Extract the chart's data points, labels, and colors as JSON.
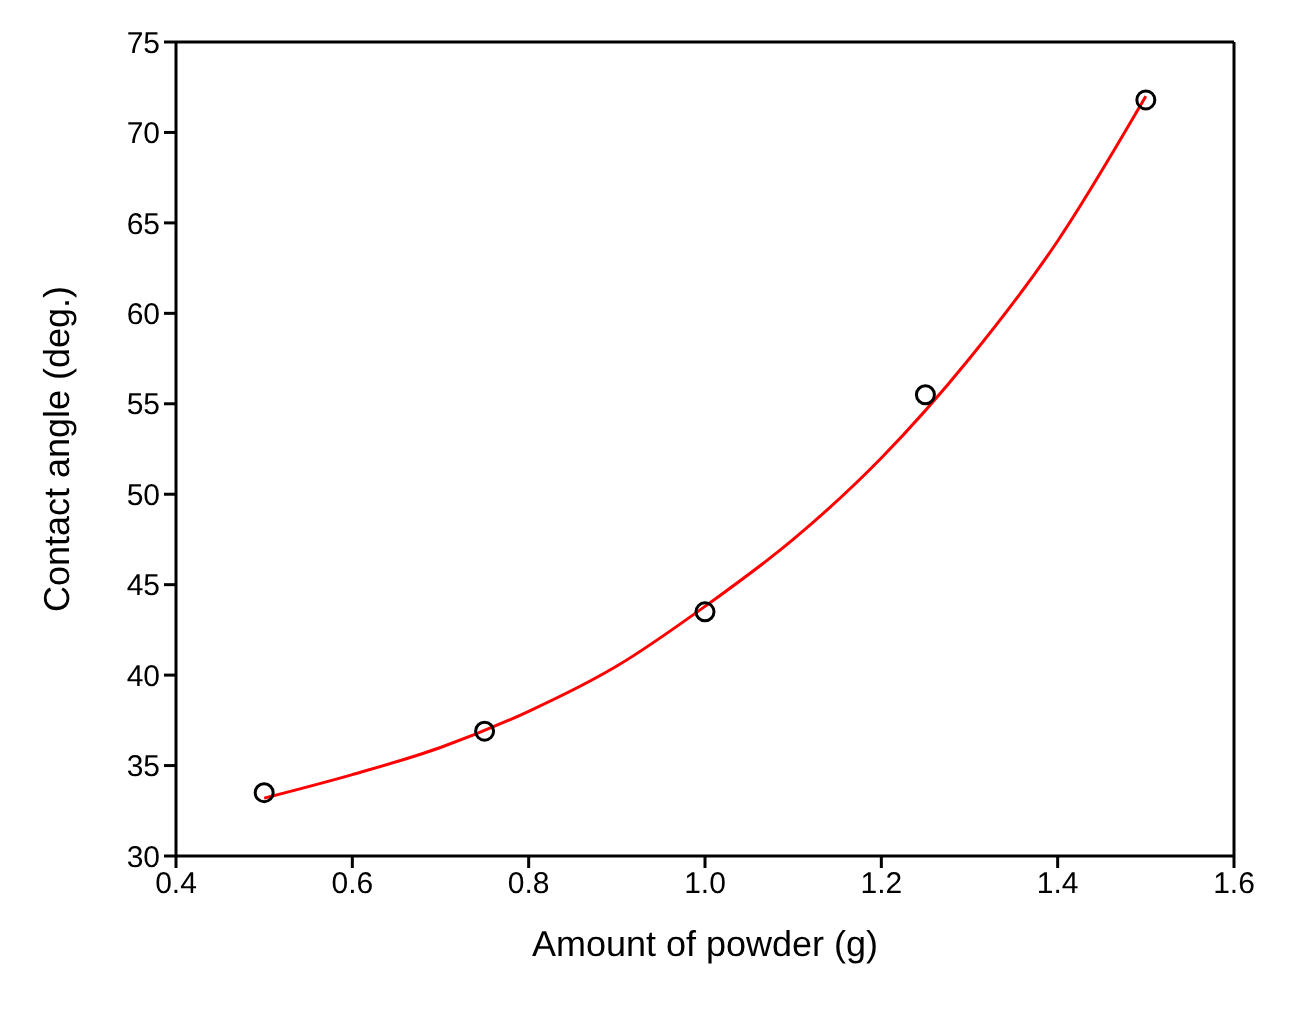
{
  "chart_data": {
    "type": "scatter",
    "xlabel": "Amount of powder (g)",
    "ylabel": "Contact angle (deg.)",
    "xlim": [
      0.4,
      1.6
    ],
    "xticks": [
      {
        "value": 0.4,
        "label": "0.4"
      },
      {
        "value": 0.6,
        "label": "0.6"
      },
      {
        "value": 0.8,
        "label": "0.8"
      },
      {
        "value": 1.0,
        "label": "1.0"
      },
      {
        "value": 1.2,
        "label": "1.2"
      },
      {
        "value": 1.4,
        "label": "1.4"
      },
      {
        "value": 1.6,
        "label": "1.6"
      }
    ],
    "ylim": [
      30,
      75
    ],
    "yticks": [
      30,
      35,
      40,
      45,
      50,
      55,
      60,
      65,
      70,
      75
    ],
    "legend": false,
    "series": [
      {
        "color": "#000000",
        "marker": "circle",
        "x": [
          0.5,
          0.75,
          1.0,
          1.25,
          1.5
        ],
        "values": [
          33.5,
          36.9,
          43.5,
          55.5,
          71.8
        ]
      },
      {
        "type": "line",
        "color": "#ff0000",
        "marker": "none",
        "line_style": "solid",
        "x": [
          0.5,
          0.6,
          0.7,
          0.8,
          0.9,
          1.0,
          1.1,
          1.2,
          1.3,
          1.4,
          1.5
        ],
        "values": [
          33.2,
          34.5,
          36.0,
          38.0,
          40.5,
          43.8,
          47.5,
          52.0,
          57.5,
          64.0,
          72.0
        ]
      }
    ]
  }
}
